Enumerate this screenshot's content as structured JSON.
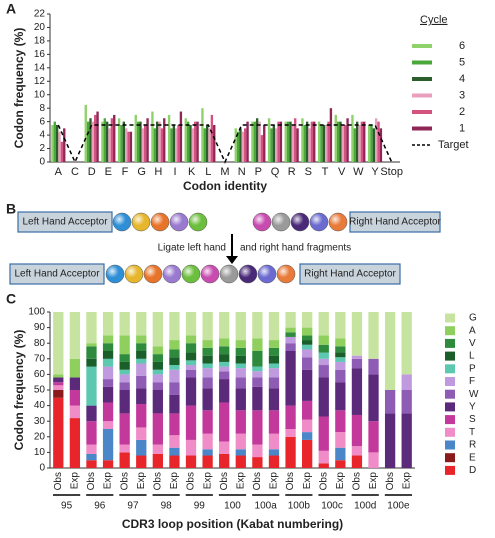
{
  "panels": [
    "A",
    "B",
    "C"
  ],
  "diagram": {
    "left_acceptor": "Left Hand Acceptor",
    "right_acceptor": "Right Hand Acceptor",
    "step_left": "Ligate left hand",
    "step_right": "and right hand fragments"
  },
  "chart_data": [
    {
      "type": "bar",
      "y_label": "Codon frequency (%)",
      "x_label": "Codon identity",
      "legend_title": "Cycle",
      "categories": [
        "A",
        "C",
        "D",
        "E",
        "F",
        "G",
        "H",
        "I",
        "K",
        "L",
        "M",
        "N",
        "P",
        "Q",
        "R",
        "S",
        "T",
        "V",
        "W",
        "Y",
        "Stop"
      ],
      "ylim": [
        0,
        22
      ],
      "yticks": [
        0,
        2,
        4,
        6,
        8,
        10,
        12,
        14,
        16,
        18,
        20,
        22
      ],
      "series": [
        {
          "name": "6",
          "color": "#8fd16a",
          "values": [
            5.5,
            0,
            8.5,
            6,
            6.5,
            7,
            7.5,
            7,
            6.5,
            8,
            0,
            5,
            6,
            6.5,
            6,
            6.5,
            6,
            7,
            7,
            5.5,
            0
          ]
        },
        {
          "name": "5",
          "color": "#4aa83a",
          "values": [
            6,
            0,
            6,
            6.5,
            5.5,
            6,
            5,
            5,
            6,
            5,
            0,
            4.5,
            6,
            5,
            6,
            5.5,
            5.5,
            6,
            5,
            5.5,
            0
          ]
        },
        {
          "name": "4",
          "color": "#2b5e2b",
          "values": [
            5.5,
            0,
            6.5,
            6,
            6,
            6,
            6,
            5.5,
            5.5,
            5.5,
            0,
            5,
            6.5,
            5.5,
            6,
            6,
            5.5,
            6,
            6,
            5,
            0
          ]
        },
        {
          "name": "3",
          "color": "#eaa0bc",
          "values": [
            4.5,
            0,
            6,
            5,
            5,
            5,
            6,
            5,
            5,
            5,
            0,
            4.5,
            6,
            5,
            5.5,
            5,
            5.5,
            5.5,
            5.5,
            6.5,
            0
          ]
        },
        {
          "name": "2",
          "color": "#d4527f",
          "values": [
            3,
            0,
            7,
            6.5,
            4.5,
            5.5,
            5,
            5.5,
            6,
            7,
            0,
            5,
            4,
            6,
            6.5,
            6,
            6,
            5.5,
            6,
            6,
            0
          ]
        },
        {
          "name": "1",
          "color": "#8e2756",
          "values": [
            5,
            0,
            7.5,
            7,
            4.5,
            6.5,
            6.5,
            7.5,
            6,
            5.5,
            0,
            6,
            5.5,
            6,
            5,
            6,
            8,
            6.5,
            6,
            5,
            0
          ]
        },
        {
          "name": "Target",
          "color": "#000000",
          "type": "line",
          "dashed": true,
          "values": [
            5.5,
            0,
            5.5,
            5.5,
            5.5,
            5.5,
            5.5,
            5.5,
            5.5,
            5.5,
            0,
            5.5,
            5.5,
            5.5,
            5.5,
            5.5,
            5.5,
            5.5,
            5.5,
            5.5,
            0
          ]
        }
      ]
    },
    {
      "type": "stacked_bar",
      "y_label": "Codon frequency (%)",
      "x_label": "CDR3 loop position (Kabat numbering)",
      "categories": [
        "Obs",
        "Exp",
        "Obs",
        "Exp",
        "Obs",
        "Exp",
        "Obs",
        "Exp",
        "Obs",
        "Exp",
        "Obs",
        "Exp",
        "Obs",
        "Exp",
        "Obs",
        "Exp",
        "Obs",
        "Exp",
        "Obs",
        "Exp",
        "Obs",
        "Exp"
      ],
      "groups": [
        "95",
        "96",
        "97",
        "98",
        "99",
        "100",
        "100a",
        "100b",
        "100c",
        "100d",
        "100e"
      ],
      "ylim": [
        0,
        100
      ],
      "yticks": [
        0,
        10,
        20,
        30,
        40,
        50,
        60,
        70,
        80,
        90,
        100
      ],
      "series": [
        {
          "name": "D",
          "color": "#e8252a",
          "values": [
            45,
            32,
            5,
            5,
            10,
            8,
            9,
            8,
            8,
            8,
            9,
            8,
            7,
            8,
            20,
            18,
            3,
            5,
            8,
            0,
            0,
            0
          ]
        },
        {
          "name": "E",
          "color": "#8b1a1a",
          "values": [
            5,
            0,
            0,
            0,
            0,
            0,
            0,
            0,
            0,
            0,
            0,
            0,
            0,
            0,
            0,
            0,
            0,
            0,
            0,
            0,
            0,
            0
          ]
        },
        {
          "name": "R",
          "color": "#4a86c8",
          "values": [
            0,
            0,
            4,
            20,
            0,
            10,
            0,
            5,
            0,
            4,
            0,
            4,
            0,
            4,
            0,
            5,
            0,
            8,
            0,
            0,
            0,
            0
          ]
        },
        {
          "name": "T",
          "color": "#f08cc8",
          "values": [
            3,
            8,
            6,
            5,
            5,
            8,
            6,
            8,
            10,
            10,
            8,
            10,
            8,
            10,
            5,
            8,
            8,
            10,
            6,
            10,
            0,
            0
          ]
        },
        {
          "name": "S",
          "color": "#c2399b",
          "values": [
            2,
            10,
            15,
            12,
            20,
            15,
            20,
            14,
            22,
            15,
            25,
            15,
            22,
            15,
            15,
            12,
            22,
            14,
            20,
            20,
            0,
            0
          ]
        },
        {
          "name": "Y",
          "color": "#5b2a7a",
          "values": [
            3,
            8,
            10,
            10,
            15,
            10,
            15,
            12,
            18,
            14,
            15,
            14,
            15,
            14,
            35,
            20,
            25,
            18,
            30,
            30,
            35,
            35
          ]
        },
        {
          "name": "W",
          "color": "#8e5bb5",
          "values": [
            0,
            0,
            0,
            5,
            5,
            8,
            5,
            8,
            5,
            7,
            5,
            7,
            6,
            7,
            5,
            8,
            8,
            8,
            6,
            10,
            15,
            15
          ]
        },
        {
          "name": "F",
          "color": "#c09ade",
          "values": [
            0,
            0,
            0,
            8,
            5,
            8,
            5,
            8,
            3,
            6,
            3,
            6,
            4,
            6,
            4,
            5,
            4,
            5,
            2,
            0,
            0,
            10
          ]
        },
        {
          "name": "P",
          "color": "#5cc8b0",
          "values": [
            0,
            0,
            25,
            5,
            3,
            3,
            3,
            3,
            3,
            3,
            3,
            3,
            3,
            3,
            0,
            3,
            4,
            3,
            0,
            0,
            0,
            0
          ]
        },
        {
          "name": "L",
          "color": "#1a5e2a",
          "values": [
            0,
            0,
            5,
            5,
            5,
            5,
            5,
            5,
            5,
            5,
            5,
            5,
            0,
            5,
            0,
            3,
            0,
            3,
            0,
            0,
            0,
            0
          ]
        },
        {
          "name": "V",
          "color": "#2e8b3e",
          "values": [
            0,
            0,
            8,
            5,
            5,
            5,
            5,
            5,
            6,
            5,
            5,
            5,
            10,
            5,
            3,
            3,
            5,
            4,
            0,
            0,
            0,
            0
          ]
        },
        {
          "name": "A",
          "color": "#8fcf5e",
          "values": [
            2,
            12,
            2,
            5,
            12,
            5,
            5,
            6,
            5,
            5,
            5,
            5,
            8,
            5,
            3,
            5,
            6,
            5,
            0,
            0,
            0,
            0
          ]
        },
        {
          "name": "G",
          "color": "#c6e3a0",
          "values": [
            40,
            30,
            20,
            15,
            15,
            15,
            22,
            18,
            15,
            18,
            17,
            18,
            17,
            18,
            10,
            10,
            15,
            17,
            28,
            30,
            50,
            40
          ]
        }
      ]
    }
  ]
}
